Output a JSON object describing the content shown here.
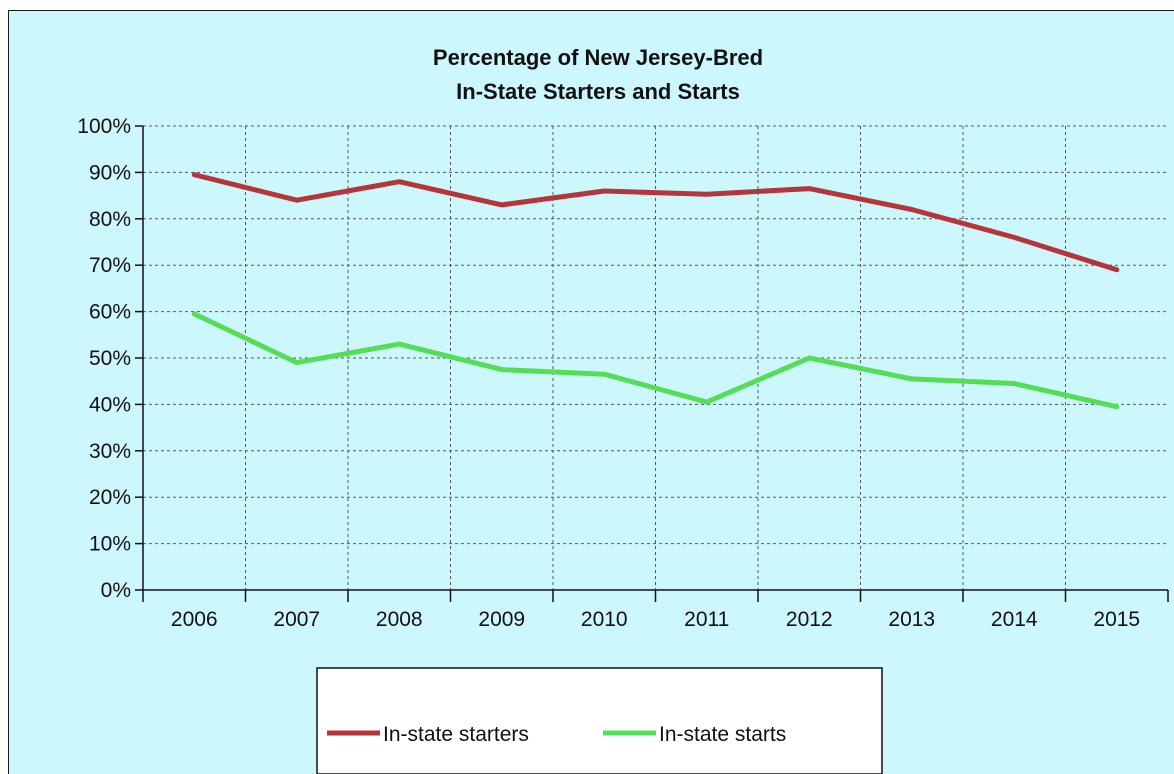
{
  "chart_data": {
    "type": "line",
    "title": [
      "Percentage of New Jersey-Bred",
      "In-State Starters and Starts"
    ],
    "xlabel": "",
    "ylabel": "",
    "categories": [
      "2006",
      "2007",
      "2008",
      "2009",
      "2010",
      "2011",
      "2012",
      "2013",
      "2014",
      "2015"
    ],
    "ylim": [
      0,
      100
    ],
    "yticks": [
      "0%",
      "10%",
      "20%",
      "30%",
      "40%",
      "50%",
      "60%",
      "70%",
      "80%",
      "90%",
      "100%"
    ],
    "grid": true,
    "legend_position": "bottom",
    "series": [
      {
        "name": "In-state starters",
        "color": "#b5353a",
        "values": [
          89.5,
          84,
          88,
          83,
          86,
          85.3,
          86.5,
          82,
          76,
          69
        ]
      },
      {
        "name": "In-state starts",
        "color": "#55dd55",
        "values": [
          59.5,
          49,
          53,
          47.5,
          46.5,
          40.5,
          50,
          45.5,
          44.5,
          39.5
        ]
      }
    ]
  }
}
